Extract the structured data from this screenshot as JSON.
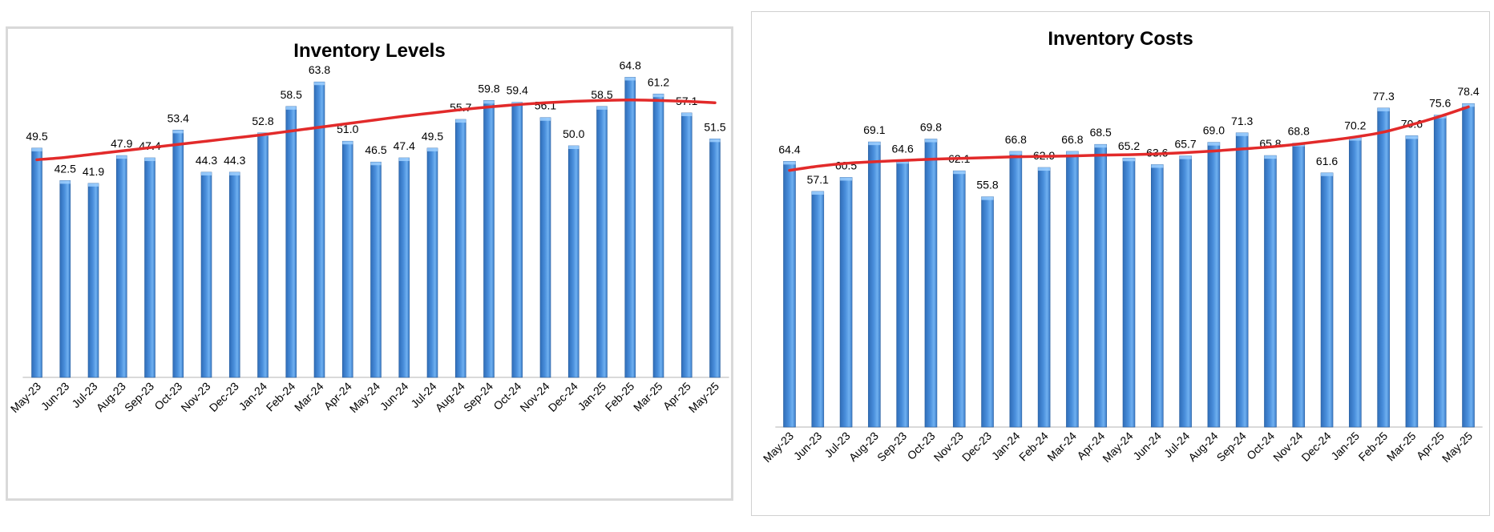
{
  "chart_data": [
    {
      "type": "bar",
      "title": "Inventory Levels",
      "trendline": true,
      "categories": [
        "May-23",
        "Jun-23",
        "Jul-23",
        "Aug-23",
        "Sep-23",
        "Oct-23",
        "Nov-23",
        "Dec-23",
        "Jan-24",
        "Feb-24",
        "Mar-24",
        "Apr-24",
        "May-24",
        "Jun-24",
        "Jul-24",
        "Aug-24",
        "Sep-24",
        "Oct-24",
        "Nov-24",
        "Dec-24",
        "Jan-25",
        "Feb-25",
        "Mar-25",
        "Apr-25",
        "May-25"
      ],
      "values": [
        49.5,
        42.5,
        41.9,
        47.9,
        47.4,
        53.4,
        44.3,
        44.3,
        52.8,
        58.5,
        63.8,
        51.0,
        46.5,
        47.4,
        49.5,
        55.7,
        59.8,
        59.4,
        56.1,
        50.0,
        58.5,
        64.8,
        61.2,
        57.1,
        51.5
      ],
      "labels": [
        "49.5",
        "42.5",
        "41.9",
        "47.9",
        "47.4",
        "53.4",
        "44.3",
        "44.3",
        "52.8",
        "58.5",
        "63.8",
        "51.0",
        "46.5",
        "47.4",
        "49.5",
        "55.7",
        "59.8",
        "59.4",
        "56.1",
        "50.0",
        "58.5",
        "64.8",
        "61.2",
        "57.1",
        "51.5"
      ],
      "trend_values": [
        47.0,
        47.5,
        48.2,
        48.9,
        49.6,
        50.3,
        51.0,
        51.7,
        52.4,
        53.2,
        54.0,
        54.8,
        55.6,
        56.4,
        57.1,
        57.8,
        58.4,
        58.9,
        59.3,
        59.6,
        59.8,
        59.9,
        59.8,
        59.6,
        59.3
      ],
      "bar_color": "#4a8fdc",
      "trend_color": "#e22a2a"
    },
    {
      "type": "bar",
      "title": "Inventory Costs",
      "trendline": true,
      "categories": [
        "May-23",
        "Jun-23",
        "Jul-23",
        "Aug-23",
        "Sep-23",
        "Oct-23",
        "Nov-23",
        "Dec-23",
        "Jan-24",
        "Feb-24",
        "Mar-24",
        "Apr-24",
        "May-24",
        "Jun-24",
        "Jul-24",
        "Aug-24",
        "Sep-24",
        "Oct-24",
        "Nov-24",
        "Dec-24",
        "Jan-25",
        "Feb-25",
        "Mar-25",
        "Apr-25",
        "May-25"
      ],
      "values": [
        64.4,
        57.1,
        60.5,
        69.1,
        64.6,
        69.8,
        62.1,
        55.8,
        66.8,
        62.9,
        66.8,
        68.5,
        65.2,
        63.6,
        65.7,
        69.0,
        71.3,
        65.8,
        68.8,
        61.6,
        70.2,
        77.3,
        70.6,
        75.6,
        78.4
      ],
      "labels": [
        "64.4",
        "57.1",
        "60.5",
        "69.1",
        "64.6",
        "69.8",
        "62.1",
        "55.8",
        "66.8",
        "62.9",
        "66.8",
        "68.5",
        "65.2",
        "63.6",
        "65.7",
        "69.0",
        "71.3",
        "65.8",
        "68.8",
        "61.6",
        "70.2",
        "77.3",
        "70.6",
        "75.6",
        "78.4"
      ],
      "trend_values": [
        62.2,
        63.2,
        63.9,
        64.3,
        64.6,
        64.9,
        65.1,
        65.3,
        65.5,
        65.6,
        65.7,
        65.9,
        66.0,
        66.2,
        66.5,
        66.9,
        67.4,
        67.9,
        68.6,
        69.4,
        70.3,
        71.5,
        73.3,
        75.3,
        77.6
      ],
      "bar_color": "#4a8fdc",
      "trend_color": "#e22a2a"
    }
  ]
}
